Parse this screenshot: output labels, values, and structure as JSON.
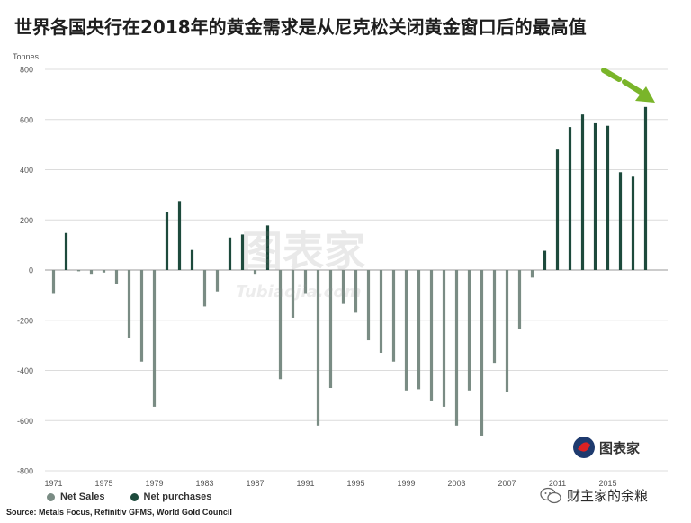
{
  "title": "世界各国央行在2018年的黄金需求是从尼克松关闭黄金窗口后的最高值",
  "chart_data": {
    "type": "bar",
    "ylabel": "Tonnes",
    "ylim": [
      -800,
      800
    ],
    "yticks": [
      -800,
      -600,
      -400,
      -200,
      0,
      200,
      400,
      600,
      800
    ],
    "xticks": [
      "1971",
      "1975",
      "1979",
      "1983",
      "1987",
      "1991",
      "1995",
      "1999",
      "2003",
      "2007",
      "2011",
      "2015"
    ],
    "x": [
      1971,
      1972,
      1973,
      1974,
      1975,
      1976,
      1977,
      1978,
      1979,
      1980,
      1981,
      1982,
      1983,
      1984,
      1985,
      1986,
      1987,
      1988,
      1989,
      1990,
      1991,
      1992,
      1993,
      1994,
      1995,
      1996,
      1997,
      1998,
      1999,
      2000,
      2001,
      2002,
      2003,
      2004,
      2005,
      2006,
      2007,
      2008,
      2009,
      2010,
      2011,
      2012,
      2013,
      2014,
      2015,
      2016,
      2017,
      2018
    ],
    "values": [
      -95,
      148,
      -5,
      -15,
      -10,
      -55,
      -270,
      -365,
      -545,
      230,
      275,
      80,
      -145,
      -85,
      130,
      142,
      -15,
      178,
      -435,
      -190,
      -95,
      -620,
      -470,
      -135,
      -170,
      -280,
      -330,
      -365,
      -480,
      -475,
      -520,
      -545,
      -620,
      -480,
      -660,
      -370,
      -485,
      -235,
      -30,
      77,
      480,
      570,
      620,
      585,
      575,
      390,
      372,
      650
    ],
    "series": [
      {
        "name": "Net Sales",
        "color": "#7a8c84"
      },
      {
        "name": "Net purchases",
        "color": "#1d4a3c"
      }
    ],
    "legend_position": "bottom-left",
    "grid": true,
    "annotation": "green arrow pointing to 2018 bar"
  },
  "source": "Source: Metals Focus, Refinitiv GFMS, World Gold Council",
  "watermarks": {
    "center": "图表家",
    "center_sub": "Tubiaojia.com",
    "logo_text": "图表家",
    "wechat": "财主家的余粮"
  },
  "colors": {
    "sales": "#7a8c84",
    "purchases": "#1d4a3c",
    "arrow": "#7ab52a",
    "grid": "#dcdcdc"
  }
}
